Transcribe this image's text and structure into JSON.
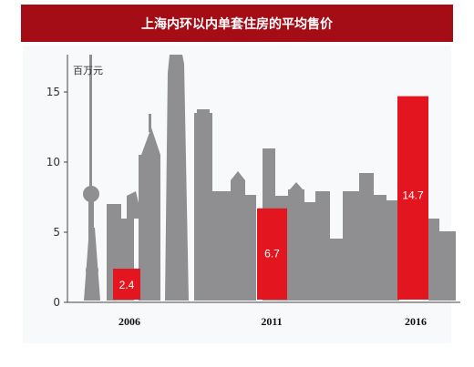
{
  "title": "上海内环以内单套住房的平均售价",
  "colors": {
    "title_bg": "#a50d16",
    "skyline": "#8f8f91",
    "bar": "#e3161f"
  },
  "chart_data": {
    "type": "bar",
    "title": "上海内环以内单套住房的平均售价",
    "ylabel": "百万元",
    "categories": [
      "2006",
      "2011",
      "2016"
    ],
    "values": [
      2.4,
      6.7,
      14.7
    ],
    "data_labels": [
      "2.4",
      "6.7",
      "14.7"
    ],
    "yticks": [
      0,
      5,
      10,
      15
    ],
    "ylim": [
      0,
      17.5
    ],
    "background": "city skyline silhouette",
    "grid": false
  }
}
